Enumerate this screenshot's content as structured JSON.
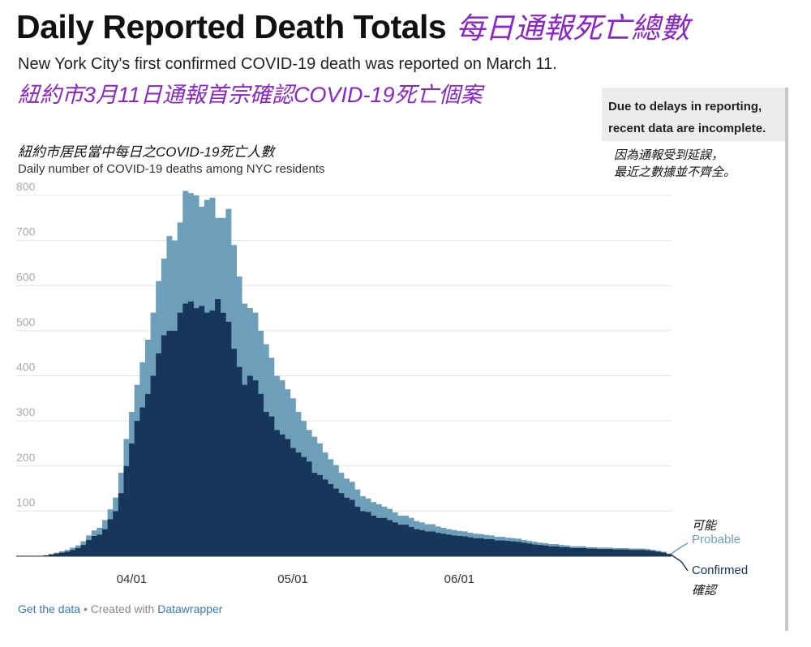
{
  "header": {
    "title_en": "Daily Reported Death Totals",
    "title_zh": "每日通報死亡總數",
    "subtitle_en": "New York City's first confirmed COVID-19 death was reported on March 11.",
    "subtitle_zh": "紐約市3月11日通報首宗確認COVID-19死亡個案"
  },
  "note": {
    "line1": "Due to delays in reporting,",
    "line2": "recent data are incomplete.",
    "zh_line1": "因為通報受到延誤，",
    "zh_line2": "最近之數據並不齊全。"
  },
  "chart_titles": {
    "zh": "紐約市居民當中每日之COVID-19死亡人數",
    "en": "Daily number of COVID-19 deaths among NYC residents"
  },
  "footer": {
    "get_data": "Get the data",
    "separator": "•",
    "created_with": "Created with",
    "datawrapper": "Datawrapper"
  },
  "legend": {
    "probable_zh": "可能",
    "probable_en": "Probable",
    "confirmed_en": "Confirmed",
    "confirmed_zh": "確認"
  },
  "colors": {
    "confirmed": "#17375a",
    "probable": "#6e9fba",
    "grid": "#e4e4e4",
    "tick": "#aaaaaa"
  },
  "chart_data": {
    "type": "bar",
    "stacked": true,
    "start_date": "2020-03-11",
    "ylim": [
      0,
      800
    ],
    "yticks": [
      100,
      200,
      300,
      400,
      500,
      600,
      700,
      800
    ],
    "xticks": [
      {
        "label": "04/01",
        "date": "2020-04-01"
      },
      {
        "label": "05/01",
        "date": "2020-05-01"
      },
      {
        "label": "06/01",
        "date": "2020-06-01"
      }
    ],
    "grid": "horizontal",
    "series": [
      {
        "name": "Confirmed",
        "values": [
          1,
          1,
          1,
          1,
          1,
          2,
          4,
          6,
          8,
          10,
          14,
          18,
          25,
          36,
          45,
          48,
          60,
          82,
          100,
          140,
          200,
          250,
          300,
          330,
          360,
          400,
          450,
          490,
          500,
          500,
          540,
          560,
          565,
          550,
          555,
          540,
          545,
          570,
          540,
          520,
          460,
          420,
          380,
          400,
          390,
          360,
          320,
          310,
          280,
          270,
          260,
          240,
          230,
          220,
          210,
          185,
          180,
          170,
          160,
          150,
          140,
          130,
          125,
          110,
          100,
          98,
          90,
          85,
          85,
          80,
          75,
          70,
          70,
          65,
          60,
          58,
          55,
          55,
          52,
          50,
          48,
          46,
          45,
          44,
          42,
          40,
          40,
          38,
          38,
          35,
          35,
          34,
          33,
          32,
          30,
          28,
          26,
          25,
          24,
          22,
          22,
          20,
          20,
          18,
          18,
          18,
          17,
          17,
          16,
          16,
          16,
          15,
          15,
          15,
          14,
          14,
          14,
          13,
          12,
          10,
          8,
          5
        ]
      },
      {
        "name": "Probable",
        "values": [
          0,
          0,
          0,
          0,
          0,
          0,
          1,
          2,
          3,
          4,
          5,
          6,
          8,
          10,
          12,
          15,
          20,
          22,
          30,
          45,
          60,
          70,
          80,
          100,
          120,
          140,
          160,
          170,
          210,
          200,
          200,
          250,
          240,
          250,
          220,
          250,
          250,
          180,
          210,
          250,
          230,
          200,
          180,
          150,
          150,
          140,
          150,
          130,
          120,
          120,
          110,
          110,
          90,
          80,
          70,
          80,
          70,
          60,
          55,
          52,
          45,
          42,
          40,
          38,
          33,
          30,
          30,
          30,
          25,
          25,
          22,
          20,
          20,
          20,
          18,
          17,
          16,
          16,
          14,
          13,
          12,
          12,
          11,
          11,
          10,
          10,
          9,
          9,
          8,
          8,
          8,
          7,
          7,
          7,
          6,
          6,
          6,
          5,
          5,
          5,
          5,
          5,
          4,
          4,
          4,
          4,
          3,
          3,
          3,
          3,
          3,
          3,
          3,
          3,
          3,
          3,
          3,
          3,
          2,
          2,
          2,
          1
        ]
      }
    ]
  }
}
